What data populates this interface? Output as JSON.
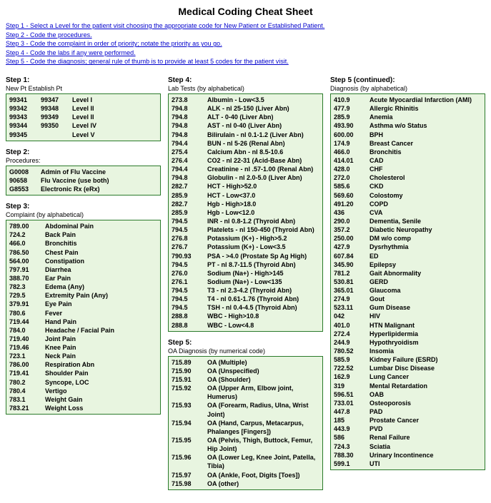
{
  "title": "Medical Coding Cheat Sheet",
  "steps": [
    "Step 1 - Select a Level for the patient visit choosing the appropriate code for New Patient or Established Patient.",
    "Step 2 - Code the procedures.",
    "Step 3 - Code the complaint in order of priority; notate the priority as you go.",
    "Step 4 - Code the labs if any were performed.",
    "Step 5 - Code the diagnosis; general rule of thumb is to provide at least 5 codes for the patient visit."
  ],
  "step1": {
    "head": "Step 1:",
    "sub": "New Pt   Establish Pt",
    "rows": [
      [
        "99341",
        "99347",
        "Level I"
      ],
      [
        "99342",
        "99348",
        "Level II"
      ],
      [
        "99343",
        "99349",
        "Level II"
      ],
      [
        "99344",
        "99350",
        "Level IV"
      ],
      [
        "99345",
        "",
        "Level V"
      ]
    ]
  },
  "step2": {
    "head": "Step 2:",
    "sub": "Procedures:",
    "rows": [
      [
        "G0008",
        "Admin of Flu Vaccine"
      ],
      [
        "90658",
        "Flu Vaccine (use both)"
      ],
      [
        "G8553",
        "Electronic Rx (eRx)"
      ]
    ]
  },
  "step3": {
    "head": "Step 3:",
    "sub": "Complaint (by alphabetical)",
    "rows": [
      [
        "789.00",
        "Abdominal Pain"
      ],
      [
        "724.2",
        "Back Pain"
      ],
      [
        "466.0",
        "Bronchitis"
      ],
      [
        "786.50",
        "Chest Pain"
      ],
      [
        "564.00",
        "Constipation"
      ],
      [
        "797.91",
        "Diarrhea"
      ],
      [
        "388.70",
        "Ear Pain"
      ],
      [
        "782.3",
        "Edema (Any)"
      ],
      [
        "729.5",
        "Extremity Pain (Any)"
      ],
      [
        "379.91",
        "Eye Pain"
      ],
      [
        "780.6",
        "Fever"
      ],
      [
        "719.44",
        "Hand Pain"
      ],
      [
        "784.0",
        "Headache / Facial Pain"
      ],
      [
        "719.40",
        "Joint Pain"
      ],
      [
        "719.46",
        "Knee Pain"
      ],
      [
        "723.1",
        "Neck Pain"
      ],
      [
        "786.00",
        "Respiration Abn"
      ],
      [
        "719.41",
        "Shoulder Pain"
      ],
      [
        "780.2",
        "Syncope, LOC"
      ],
      [
        "780.4",
        "Vertigo"
      ],
      [
        "783.1",
        "Weight Gain"
      ],
      [
        "783.21",
        "Weight Loss"
      ]
    ]
  },
  "step4": {
    "head": "Step 4:",
    "sub": "Lab Tests (by alphabetical)",
    "rows": [
      [
        "273.8",
        "Albumin - Low<3.5"
      ],
      [
        "794.8",
        "ALK - nl 25-150 (Liver Abn)"
      ],
      [
        "794.8",
        "ALT - 0-40 (Liver Abn)"
      ],
      [
        "794.8",
        "AST - nl 0-40  (Liver Abn)"
      ],
      [
        "794.8",
        "Bilirulain - nl 0.1-1.2 (Liver Abn)"
      ],
      [
        "794.4",
        "BUN - nl 5-26 (Renal Abn)"
      ],
      [
        "275.4",
        "Calcium Abn - nl 8.5-10.6"
      ],
      [
        "276.4",
        "CO2 - nl 22-31 (Acid-Base Abn)"
      ],
      [
        "794.4",
        "Creatinine - nl .57-1.00 (Renal Abn)"
      ],
      [
        "794.8",
        "Globulin - nl 2.0-5.0 (Liver Abn)"
      ],
      [
        "282.7",
        "HCT - High>52.0"
      ],
      [
        "285.9",
        "HCT - Low<37.0"
      ],
      [
        "282.7",
        "Hgb - High>18.0"
      ],
      [
        "285.9",
        "Hgb - Low<12.0"
      ],
      [
        "794.5",
        "INR - nl 0.8-1.2 (Thyroid Abn)"
      ],
      [
        "794.5",
        "Platelets - nl 150-450 (Thyroid Abn)"
      ],
      [
        "276.8",
        "Potassium (K+) - High>5.2"
      ],
      [
        "276.7",
        "Potassium (K+) - Low<3.5"
      ],
      [
        "790.93",
        "PSA - >4.0 (Prostate Sp Ag High)"
      ],
      [
        "794.5",
        "PT - nl 8.7-11.5 (Thyroid Abn)"
      ],
      [
        "276.0",
        "Sodium (Na+) - High>145"
      ],
      [
        "276.1",
        "Sodium (Na+) - Low<135"
      ],
      [
        "794.5",
        "T3 - nl 2.3-4.2 (Thyroid Abn)"
      ],
      [
        "794.5",
        "T4 - nl 0.61-1.76 (Thyroid Abn)"
      ],
      [
        "794.5",
        "TSH - nl 0.4-4.5 (Thyroid Abn)"
      ],
      [
        "288.8",
        "WBC - High>10.8"
      ],
      [
        "288.8",
        "WBC - Low<4.8"
      ]
    ]
  },
  "step5a": {
    "head": "Step 5:",
    "sub": "OA Diagnosis (by numerical code)",
    "rows": [
      [
        "715.89",
        "OA (Multiple)"
      ],
      [
        "715.90",
        "OA (Unspecified)"
      ],
      [
        "715.91",
        "OA (Shoulder)"
      ],
      [
        "715.92",
        "OA (Upper Arm, Elbow joint, Humerus)"
      ],
      [
        "715.93",
        "OA (Forearm, Radius, Ulna, Wrist Joint)"
      ],
      [
        "715.94",
        "OA (Hand, Carpus, Metacarpus, Phalanges [Fingers])"
      ],
      [
        "715.95",
        "OA (Pelvis, Thigh, Buttock, Femur, Hip Joint)"
      ],
      [
        "715.96",
        "OA (Lower Leg, Knee Joint, Patella, Tibia)"
      ],
      [
        "715.97",
        "OA (Ankle, Foot, Digits [Toes])"
      ],
      [
        "715.98",
        "OA (other)"
      ]
    ]
  },
  "step5b": {
    "head": "Step 5 (continued):",
    "sub": "Diagnosis (by alphabetical)",
    "rows": [
      [
        "410.9",
        "Acute Myocardial Infarction (AMI)"
      ],
      [
        "477.9",
        "Allergic Rhinitis"
      ],
      [
        "285.9",
        "Anemia"
      ],
      [
        "493.90",
        "Asthma w/o Status"
      ],
      [
        "600.00",
        "BPH"
      ],
      [
        "174.9",
        "Breast Cancer"
      ],
      [
        "466.0",
        "Bronchitis"
      ],
      [
        "414.01",
        "CAD"
      ],
      [
        "428.0",
        "CHF"
      ],
      [
        "272.0",
        "Cholesterol"
      ],
      [
        "585.6",
        "CKD"
      ],
      [
        "569.60",
        "Colostomy"
      ],
      [
        "491.20",
        "COPD"
      ],
      [
        "436",
        "CVA"
      ],
      [
        "290.0",
        "Dementia, Senile"
      ],
      [
        "357.2",
        "Diabetic Neuropathy"
      ],
      [
        "250.00",
        "DM w/o comp"
      ],
      [
        "427.9",
        "Dysrhythmia"
      ],
      [
        "607.84",
        "ED"
      ],
      [
        "345.90",
        "Epilepsy"
      ],
      [
        "781.2",
        "Gait Abnormality"
      ],
      [
        "530.81",
        "GERD"
      ],
      [
        "365.01",
        "Glaucoma"
      ],
      [
        "274.9",
        "Gout"
      ],
      [
        "523.11",
        "Gum Disease"
      ],
      [
        "042",
        "HIV"
      ],
      [
        "401.0",
        "HTN Malignant"
      ],
      [
        "272.4",
        "Hyperlipidermia"
      ],
      [
        "244.9",
        "Hypothryoidism"
      ],
      [
        "780.52",
        "Insomia"
      ],
      [
        "585.9",
        "Kidney Failure (ESRD)"
      ],
      [
        "722.52",
        "Lumbar Disc Disease"
      ],
      [
        "162.9",
        "Lung Cancer"
      ],
      [
        "319",
        "Mental Retardation"
      ],
      [
        "596.51",
        "OAB"
      ],
      [
        "733.01",
        "Osteoporosis"
      ],
      [
        "447.8",
        "PAD"
      ],
      [
        "185",
        "Prostate Cancer"
      ],
      [
        "443.9",
        "PVD"
      ],
      [
        "586",
        "Renal Failure"
      ],
      [
        "724.3",
        "Sciatia"
      ],
      [
        "788.30",
        "Urinary Incontinence"
      ],
      [
        "599.1",
        "UTI"
      ]
    ]
  }
}
